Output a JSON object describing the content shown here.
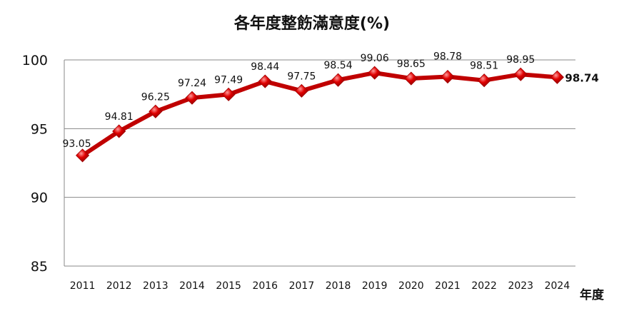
{
  "chart_data": {
    "type": "line",
    "title": "各年度整飭滿意度(%)",
    "xlabel": "年度",
    "ylabel": "",
    "categories": [
      "2011",
      "2012",
      "2013",
      "2014",
      "2015",
      "2016",
      "2017",
      "2018",
      "2019",
      "2020",
      "2021",
      "2022",
      "2023",
      "2024"
    ],
    "series": [
      {
        "values": [
          93.05,
          94.81,
          96.25,
          97.24,
          97.49,
          98.44,
          97.75,
          98.54,
          99.06,
          98.65,
          98.78,
          98.51,
          98.95,
          98.74
        ]
      }
    ],
    "data_labels": [
      "93.05",
      "94.81",
      "96.25",
      "97.24",
      "97.49",
      "98.44",
      "97.75",
      "98.54",
      "99.06",
      "98.65",
      "98.78",
      "98.51",
      "98.95",
      "98.74"
    ],
    "ylim": [
      85,
      100
    ],
    "yticks": [
      100,
      95,
      90,
      85
    ],
    "grid": true,
    "legend": "none",
    "colors": {
      "line": "#c00000",
      "marker": "#e00000",
      "grid": "#888888"
    }
  }
}
